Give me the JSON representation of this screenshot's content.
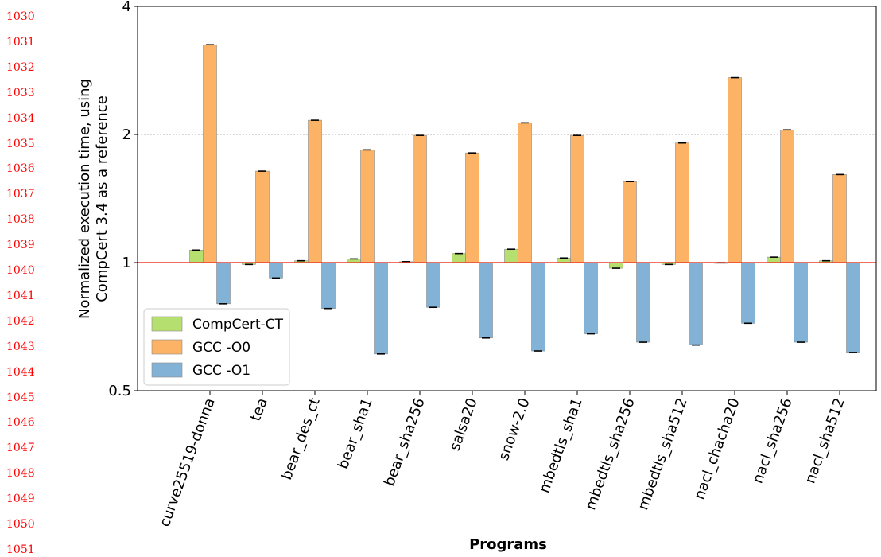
{
  "line_numbers": [
    "1030",
    "1031",
    "1032",
    "1033",
    "1034",
    "1035",
    "1036",
    "1037",
    "1038",
    "1039",
    "1040",
    "1041",
    "1042",
    "1043",
    "1044",
    "1045",
    "1046",
    "1047",
    "1048",
    "1049",
    "1050",
    "1051"
  ],
  "chart_data": {
    "type": "bar",
    "xlabel": "Programs",
    "ylabel_lines": [
      "Normalized execution time, using",
      "CompCert 3.4 as a reference"
    ],
    "yscale": "log2",
    "ylim": [
      0.5,
      4
    ],
    "yticks": [
      0.5,
      1,
      2,
      4
    ],
    "ytick_labels": [
      "0.5",
      "1",
      "2",
      "4"
    ],
    "reference_line": 1,
    "reference_color": "#e8412b",
    "gridline_at": 2,
    "legend_position": "lower-left",
    "categories": [
      "curve25519-donna",
      "tea",
      "bear_des_ct",
      "bear_sha1",
      "bear_sha256",
      "salsa20",
      "snow-2.0",
      "mbedtls_sha1",
      "mbedtls_sha256",
      "mbedtls_sha512",
      "nacl_chacha20",
      "nacl_sha256",
      "nacl_sha512"
    ],
    "series": [
      {
        "name": "CompCert-CT",
        "color": "#b5df6e",
        "values": [
          1.07,
          0.99,
          1.01,
          1.02,
          1.005,
          1.05,
          1.075,
          1.025,
          0.97,
          0.99,
          1.0,
          1.03,
          1.01
        ]
      },
      {
        "name": "GCC -O0",
        "color": "#fdb366",
        "values": [
          3.25,
          1.64,
          2.16,
          1.84,
          1.99,
          1.81,
          2.13,
          1.99,
          1.55,
          1.91,
          2.72,
          2.05,
          1.61
        ]
      },
      {
        "name": "GCC -O1",
        "color": "#82b2d5",
        "values": [
          0.8,
          0.92,
          0.78,
          0.61,
          0.785,
          0.665,
          0.62,
          0.68,
          0.65,
          0.64,
          0.72,
          0.65,
          0.615
        ]
      }
    ]
  }
}
